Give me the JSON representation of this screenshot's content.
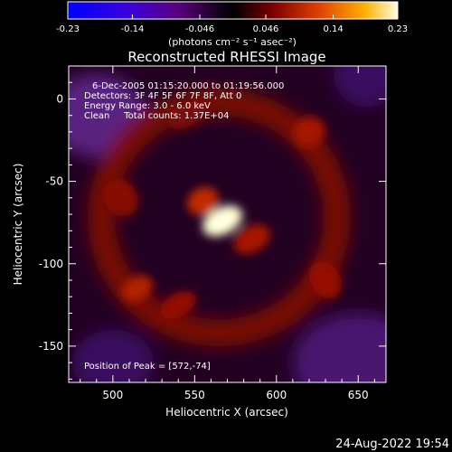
{
  "chart_data": {
    "type": "heatmap",
    "title": "Reconstructed RHESSI Image",
    "xlabel": "Heliocentric X (arcsec)",
    "ylabel": "Heliocentric Y (arcsec)",
    "xlim": [
      473,
      667
    ],
    "ylim": [
      -172,
      20
    ],
    "x_ticks": [
      500,
      550,
      600,
      650
    ],
    "y_ticks": [
      0,
      -50,
      -100,
      -150
    ],
    "colorbar": {
      "label": "(photons cm⁻² s⁻¹ asec⁻²)",
      "range": [
        -0.23,
        0.23
      ],
      "ticks": [
        "-0.23",
        "-0.14",
        "-0.046",
        "0.046",
        "0.14",
        "0.23"
      ]
    },
    "annotations": [
      "6-Dec-2005 01:15:20.000 to 01:19:56.000",
      "Detectors: 3F 4F 5F 6F 7F 8F, Att 0",
      "Energy Range: 3.0 - 6.0 keV",
      "Clean     Total counts: 1.37E+04"
    ],
    "peak_text": "Position of Peak = [572,-74]",
    "peak": {
      "x": 572,
      "y": -74
    },
    "blobs": [
      {
        "x": 567,
        "y": -74,
        "sx": 13,
        "sy": 8,
        "amp": 0.23
      },
      {
        "x": 555,
        "y": -62,
        "sx": 10,
        "sy": 8,
        "amp": 0.1
      },
      {
        "x": 585,
        "y": -85,
        "sx": 12,
        "sy": 8,
        "amp": 0.08
      },
      {
        "x": 515,
        "y": -115,
        "sx": 10,
        "sy": 7,
        "amp": 0.09
      },
      {
        "x": 540,
        "y": -125,
        "sx": 12,
        "sy": 7,
        "amp": 0.07
      },
      {
        "x": 620,
        "y": -20,
        "sx": 10,
        "sy": 9,
        "amp": 0.08
      },
      {
        "x": 630,
        "y": -110,
        "sx": 9,
        "sy": 12,
        "amp": 0.07
      },
      {
        "x": 505,
        "y": -60,
        "sx": 10,
        "sy": 12,
        "amp": 0.06
      },
      {
        "x": 545,
        "y": -10,
        "sx": 12,
        "sy": 7,
        "amp": 0.05
      }
    ]
  },
  "footer_timestamp": "24-Aug-2022 19:54"
}
